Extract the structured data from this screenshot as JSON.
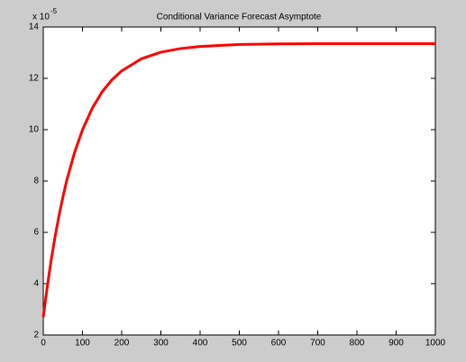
{
  "chart_data": {
    "type": "line",
    "title": "Conditional Variance Forecast Asymptote",
    "y_multiplier_base": "x 10",
    "y_multiplier_exponent": "-5",
    "x": [
      0,
      10,
      20,
      30,
      40,
      50,
      60,
      80,
      100,
      125,
      150,
      175,
      200,
      250,
      300,
      350,
      400,
      500,
      600,
      700,
      800,
      900,
      1000
    ],
    "series": [
      {
        "color": "#ff0000",
        "values": [
          2.7,
          3.86,
          4.9,
          5.82,
          6.64,
          7.37,
          8.03,
          9.12,
          9.99,
          10.84,
          11.47,
          11.94,
          12.29,
          12.76,
          13.02,
          13.16,
          13.24,
          13.32,
          13.34,
          13.35,
          13.35,
          13.35,
          13.35
        ]
      }
    ],
    "xlim": [
      0,
      1000
    ],
    "xticks": [
      0,
      100,
      200,
      300,
      400,
      500,
      600,
      700,
      800,
      900,
      1000
    ],
    "ylim": [
      2,
      14
    ],
    "yticks": [
      2,
      4,
      6,
      8,
      10,
      12,
      14
    ]
  }
}
